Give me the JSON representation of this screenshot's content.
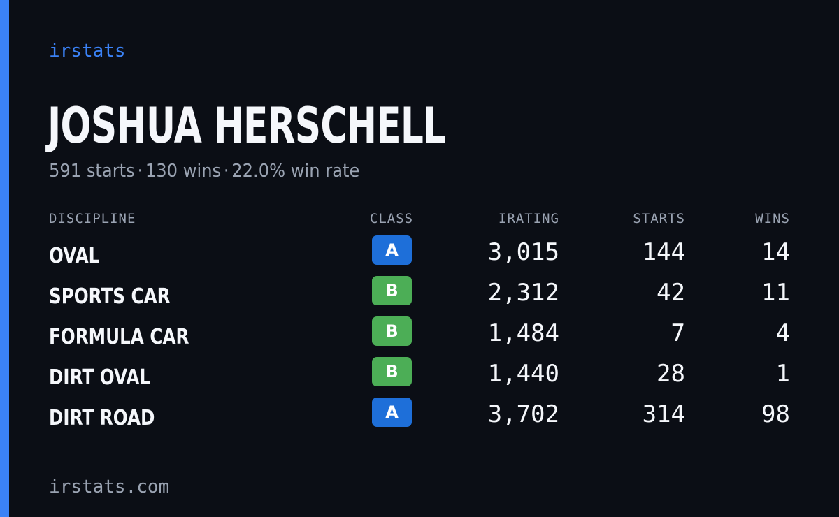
{
  "brand": "irstats",
  "driver": {
    "name": "JOSHUA HERSCHELL",
    "starts_summary": "591 starts",
    "wins_summary": "130 wins",
    "win_rate_summary": "22.0% win rate",
    "separator": "·"
  },
  "table": {
    "headers": {
      "discipline": "DISCIPLINE",
      "class": "CLASS",
      "irating": "IRATING",
      "starts": "STARTS",
      "wins": "WINS"
    },
    "rows": [
      {
        "discipline": "OVAL",
        "class": "A",
        "irating": "3,015",
        "starts": "144",
        "wins": "14"
      },
      {
        "discipline": "SPORTS CAR",
        "class": "B",
        "irating": "2,312",
        "starts": "42",
        "wins": "11"
      },
      {
        "discipline": "FORMULA CAR",
        "class": "B",
        "irating": "1,484",
        "starts": "7",
        "wins": "4"
      },
      {
        "discipline": "DIRT OVAL",
        "class": "B",
        "irating": "1,440",
        "starts": "28",
        "wins": "1"
      },
      {
        "discipline": "DIRT ROAD",
        "class": "A",
        "irating": "3,702",
        "starts": "314",
        "wins": "98"
      }
    ]
  },
  "footer": {
    "url": "irstats.com"
  },
  "colors": {
    "background": "#0b0e15",
    "accent": "#3b82f6",
    "class_a": "#1e6fd9",
    "class_b": "#4cae56",
    "text_primary": "#f5f7fb",
    "text_muted": "#9aa3b2"
  }
}
